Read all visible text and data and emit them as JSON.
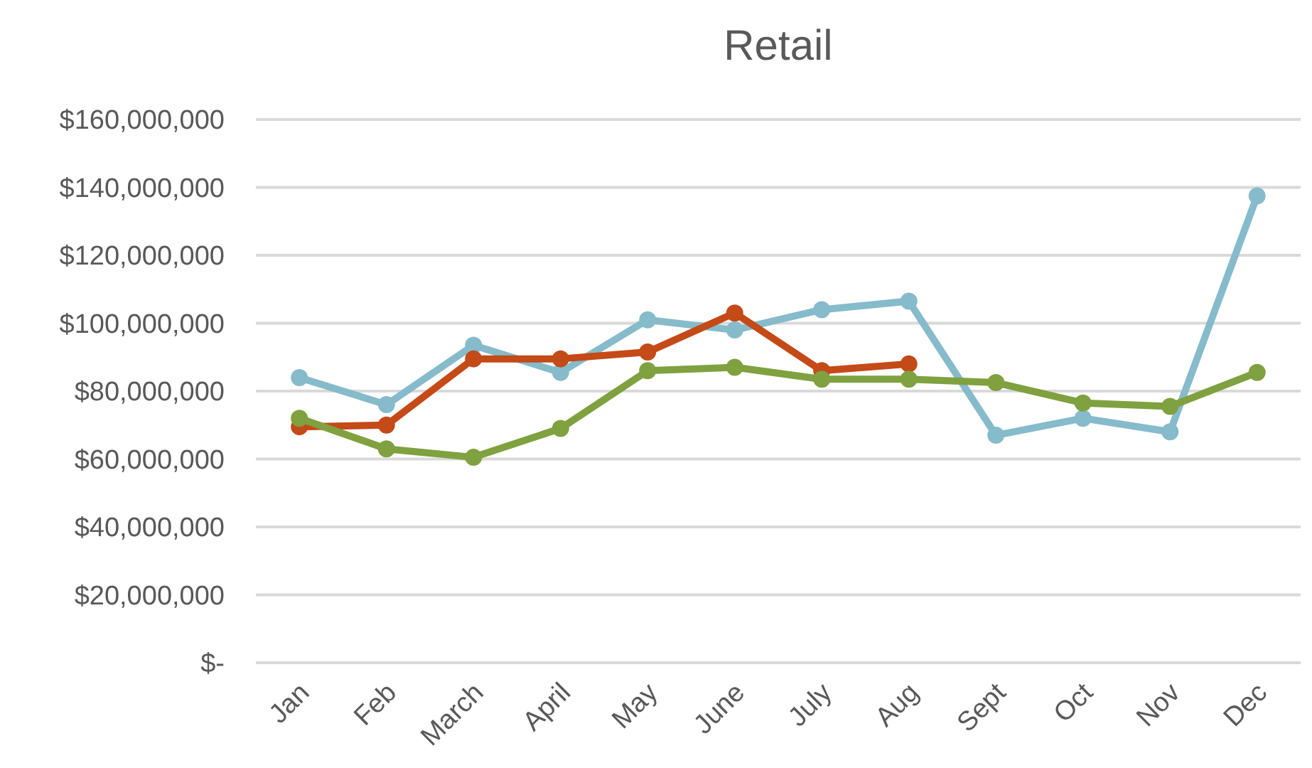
{
  "chart_data": {
    "type": "line",
    "title": "Retail",
    "categories": [
      "Jan",
      "Feb",
      "March",
      "April",
      "May",
      "June",
      "July",
      "Aug",
      "Sept",
      "Oct",
      "Nov",
      "Dec"
    ],
    "series": [
      {
        "color": "#86bbcb",
        "values": [
          84000000,
          76000000,
          93500000,
          85500000,
          101000000,
          98000000,
          104000000,
          106500000,
          67000000,
          72000000,
          68000000,
          137500000
        ]
      },
      {
        "color": "#c44a17",
        "values": [
          69500000,
          70000000,
          89500000,
          89500000,
          91500000,
          103000000,
          86000000,
          88000000,
          null,
          null,
          null,
          null
        ]
      },
      {
        "color": "#7fa13f",
        "values": [
          72000000,
          63000000,
          60500000,
          69000000,
          86000000,
          87000000,
          83500000,
          83500000,
          82500000,
          76500000,
          75500000,
          85500000
        ]
      }
    ],
    "ylim": [
      0,
      160000000
    ],
    "yticks": [
      {
        "value": 0,
        "label": "$-"
      },
      {
        "value": 20000000,
        "label": "$20,000,000"
      },
      {
        "value": 40000000,
        "label": "$40,000,000"
      },
      {
        "value": 60000000,
        "label": "$60,000,000"
      },
      {
        "value": 80000000,
        "label": "$80,000,000"
      },
      {
        "value": 100000000,
        "label": "$100,000,000"
      },
      {
        "value": 120000000,
        "label": "$120,000,000"
      },
      {
        "value": 140000000,
        "label": "$140,000,000"
      },
      {
        "value": 160000000,
        "label": "$160,000,000"
      }
    ],
    "grid": "y",
    "marker": "circle",
    "line_style": "solid"
  }
}
